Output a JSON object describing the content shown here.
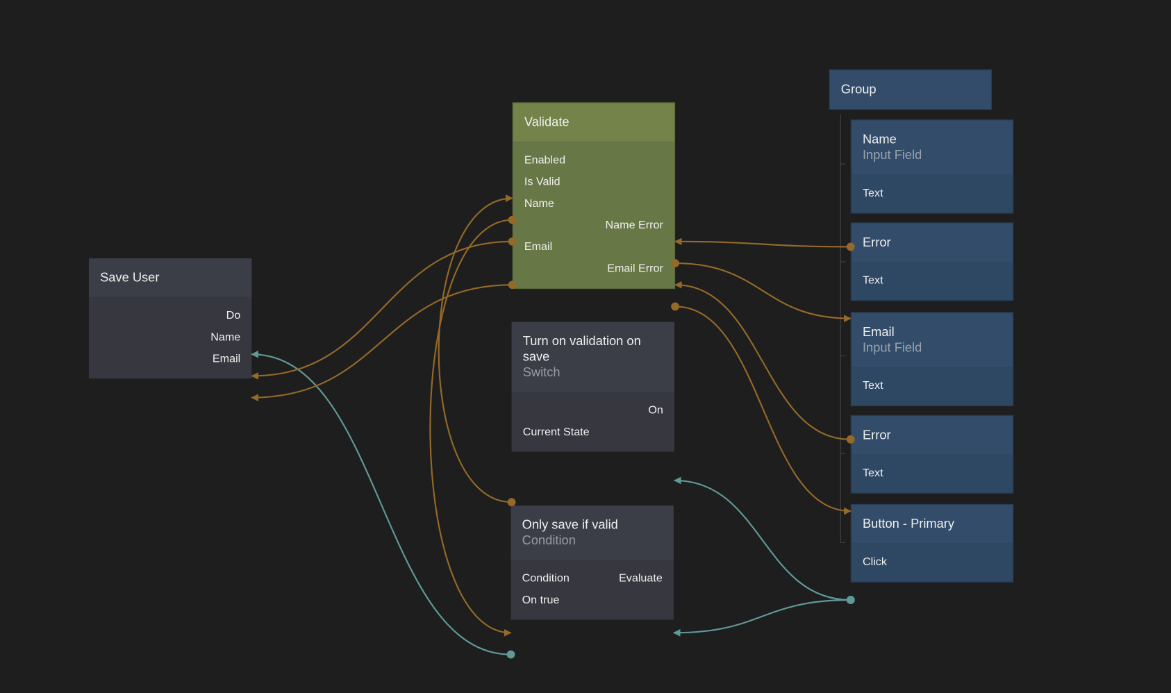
{
  "colors": {
    "background": "#1e1e1e",
    "data_wire": "#94692a",
    "signal_wire": "#5f9a98",
    "visual_node": "#324c6a",
    "logic_node": "#3c3e47",
    "function_node": "#738349"
  },
  "nodes": {
    "save_user": {
      "title": "Save User",
      "ports": {
        "do": "Do",
        "name": "Name",
        "email": "Email"
      }
    },
    "validate": {
      "title": "Validate",
      "ports": {
        "enabled": "Enabled",
        "is_valid": "Is Valid",
        "name": "Name",
        "name_error": "Name Error",
        "email": "Email",
        "email_error": "Email Error"
      }
    },
    "switch": {
      "title": "Turn on validation on save",
      "subtitle": "Switch",
      "ports": {
        "on": "On",
        "current_state": "Current State"
      }
    },
    "condition": {
      "title": "Only save if valid",
      "subtitle": "Condition",
      "ports": {
        "condition": "Condition",
        "evaluate": "Evaluate",
        "on_true": "On true"
      }
    },
    "group": {
      "title": "Group"
    },
    "name_field": {
      "title": "Name",
      "subtitle": "Input Field",
      "ports": {
        "text": "Text"
      }
    },
    "name_error": {
      "title": "Error",
      "ports": {
        "text": "Text"
      }
    },
    "email_field": {
      "title": "Email",
      "subtitle": "Input Field",
      "ports": {
        "text": "Text"
      }
    },
    "email_error": {
      "title": "Error",
      "ports": {
        "text": "Text"
      }
    },
    "button": {
      "title": "Button - Primary",
      "ports": {
        "click": "Click"
      }
    }
  },
  "connections": [
    {
      "from": "name_field.text",
      "to": "validate.name_in",
      "type": "data"
    },
    {
      "from": "validate.name_error",
      "to": "name_error.text",
      "type": "data"
    },
    {
      "from": "email_field.text",
      "to": "validate.email_in",
      "type": "data"
    },
    {
      "from": "validate.email_error",
      "to": "email_error.text",
      "type": "data"
    },
    {
      "from": "button.click",
      "to": "switch.on",
      "type": "signal"
    },
    {
      "from": "button.click",
      "to": "condition.evaluate",
      "type": "signal"
    },
    {
      "from": "condition.on_true",
      "to": "save_user.do",
      "type": "signal"
    },
    {
      "from": "validate.name",
      "to": "save_user.name",
      "type": "data"
    },
    {
      "from": "validate.email",
      "to": "save_user.email",
      "type": "data"
    },
    {
      "from": "switch.current_state",
      "to": "validate.enabled",
      "type": "data"
    },
    {
      "from": "validate.is_valid",
      "to": "condition.condition",
      "type": "data"
    }
  ]
}
